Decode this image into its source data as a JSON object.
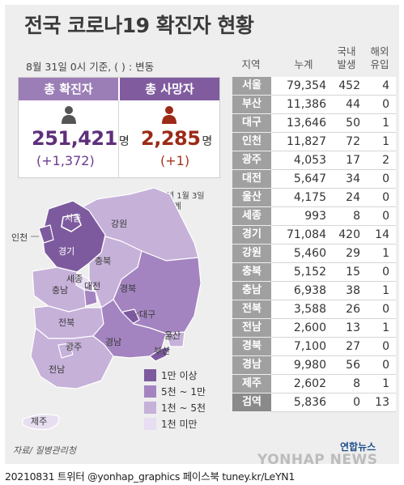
{
  "title": "전국 코로나19 확진자 현황",
  "date_note": "8월 31일 0시 기준, ( ) : 변동",
  "summary": {
    "confirmed": {
      "label": "총 확진자",
      "value": "251,421",
      "unit": "명",
      "change": "(+1,372)"
    },
    "deaths": {
      "label": "총 사망자",
      "value": "2,285",
      "unit": "명",
      "change": "(+1)"
    }
  },
  "footnote": [
    "※2020년 1월 3일",
    "이후 누계"
  ],
  "map": {
    "labels": {
      "seoul": "서울",
      "incheon": "인천",
      "gyeonggi": "경기",
      "gangwon": "강원",
      "chungbuk": "충북",
      "sejong": "세종",
      "daejeon": "대전",
      "chungnam": "충남",
      "gyeongbuk": "경북",
      "daegu": "대구",
      "jeonbuk": "전북",
      "gwangju": "광주",
      "jeonnam": "전남",
      "gyeongnam": "경남",
      "ulsan": "울산",
      "busan": "부산",
      "jeju": "제주"
    }
  },
  "legend": [
    {
      "label": "1만 이상",
      "color": "#7d5a9e"
    },
    {
      "label": "5천 ~ 1만",
      "color": "#a384c0"
    },
    {
      "label": "1천 ~ 5천",
      "color": "#c6b1d9"
    },
    {
      "label": "1천 미만",
      "color": "#e7def1"
    }
  ],
  "source": "자료/ 질병관리청",
  "footer": "20210831 트위터 @yonhap_graphics  페이스북 tuney.kr/LeYN1",
  "logo": "연합뉴스",
  "watermark": "YONHAP NEWS",
  "chart_data": {
    "type": "table",
    "columns": [
      "지역",
      "누계",
      "국내 발생",
      "해외 유입"
    ],
    "column_headers": {
      "region": "지역",
      "total": "누계",
      "domestic_1": "국내",
      "domestic_2": "발생",
      "overseas_1": "해외",
      "overseas_2": "유입"
    },
    "rows": [
      {
        "region": "서울",
        "total": "79,354",
        "domestic": 452,
        "overseas": 4
      },
      {
        "region": "부산",
        "total": "11,386",
        "domestic": 44,
        "overseas": 0
      },
      {
        "region": "대구",
        "total": "13,646",
        "domestic": 50,
        "overseas": 1
      },
      {
        "region": "인천",
        "total": "11,827",
        "domestic": 72,
        "overseas": 1
      },
      {
        "region": "광주",
        "total": "4,053",
        "domestic": 17,
        "overseas": 2
      },
      {
        "region": "대전",
        "total": "5,647",
        "domestic": 34,
        "overseas": 0
      },
      {
        "region": "울산",
        "total": "4,175",
        "domestic": 24,
        "overseas": 0
      },
      {
        "region": "세종",
        "total": "993",
        "domestic": 8,
        "overseas": 0
      },
      {
        "region": "경기",
        "total": "71,084",
        "domestic": 420,
        "overseas": 14
      },
      {
        "region": "강원",
        "total": "5,460",
        "domestic": 29,
        "overseas": 1
      },
      {
        "region": "충북",
        "total": "5,152",
        "domestic": 15,
        "overseas": 0
      },
      {
        "region": "충남",
        "total": "6,938",
        "domestic": 38,
        "overseas": 1
      },
      {
        "region": "전북",
        "total": "3,588",
        "domestic": 26,
        "overseas": 0
      },
      {
        "region": "전남",
        "total": "2,600",
        "domestic": 13,
        "overseas": 1
      },
      {
        "region": "경북",
        "total": "7,100",
        "domestic": 27,
        "overseas": 0
      },
      {
        "region": "경남",
        "total": "9,980",
        "domestic": 56,
        "overseas": 0
      },
      {
        "region": "제주",
        "total": "2,602",
        "domestic": 8,
        "overseas": 1
      },
      {
        "region": "검역",
        "total": "5,836",
        "domestic": 0,
        "overseas": 13
      }
    ]
  }
}
